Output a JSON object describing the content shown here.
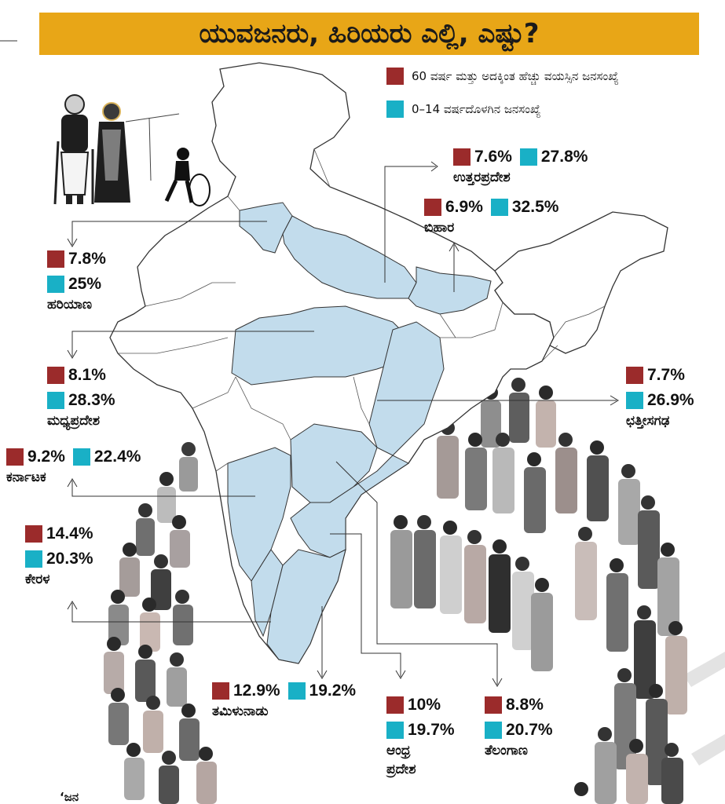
{
  "title": "ಯುವಜನರು, ಹಿರಿಯರು ಎಲ್ಲಿ, ಎಷ್ಟು?",
  "legend": {
    "elderly": "60 ವರ್ಷ ಮತ್ತು ಅದಕ್ಕಿಂತ ಹೆಚ್ಚು ವಯಸ್ಸಿನ ಜನಸಂಖ್ಯೆ",
    "children": "0–14 ವರ್ಷದೊಳಗಿನ ಜನಸಂಖ್ಯೆ"
  },
  "colors": {
    "elderly": "#9b2b2b",
    "children": "#19b0c6",
    "title_bg": "#e8a617",
    "map_highlight": "#c2dcec"
  },
  "states": {
    "up": {
      "name": "ಉತ್ತರಪ್ರದೇಶ",
      "elderly": "7.6%",
      "children": "27.8%"
    },
    "bihar": {
      "name": "ಬಿಹಾರ",
      "elderly": "6.9%",
      "children": "32.5%"
    },
    "haryana": {
      "name": "ಹರಿಯಾಣ",
      "elderly": "7.8%",
      "children": "25%"
    },
    "mp": {
      "name": "ಮಧ್ಯಪ್ರದೇಶ",
      "elderly": "8.1%",
      "children": "28.3%"
    },
    "chhattisgarh": {
      "name": "ಛತ್ತೀಸಗಢ",
      "elderly": "7.7%",
      "children": "26.9%"
    },
    "karnataka": {
      "name": "ಕರ್ನಾಟಕ",
      "elderly": "9.2%",
      "children": "22.4%"
    },
    "kerala": {
      "name": "ಕೇರಳ",
      "elderly": "14.4%",
      "children": "20.3%"
    },
    "tamilnadu": {
      "name": "ತಮಿಳುನಾಡು",
      "elderly": "12.9%",
      "children": "19.2%"
    },
    "andhra": {
      "name": "ಆಂಧ್ರ",
      "name2": "ಪ್ರದೇಶ",
      "elderly": "10%",
      "children": "19.7%"
    },
    "telangana": {
      "name": "ತೆಲಂಗಾಣ",
      "elderly": "8.8%",
      "children": "20.7%"
    }
  },
  "footer_fragment": "‘ಜನ"
}
